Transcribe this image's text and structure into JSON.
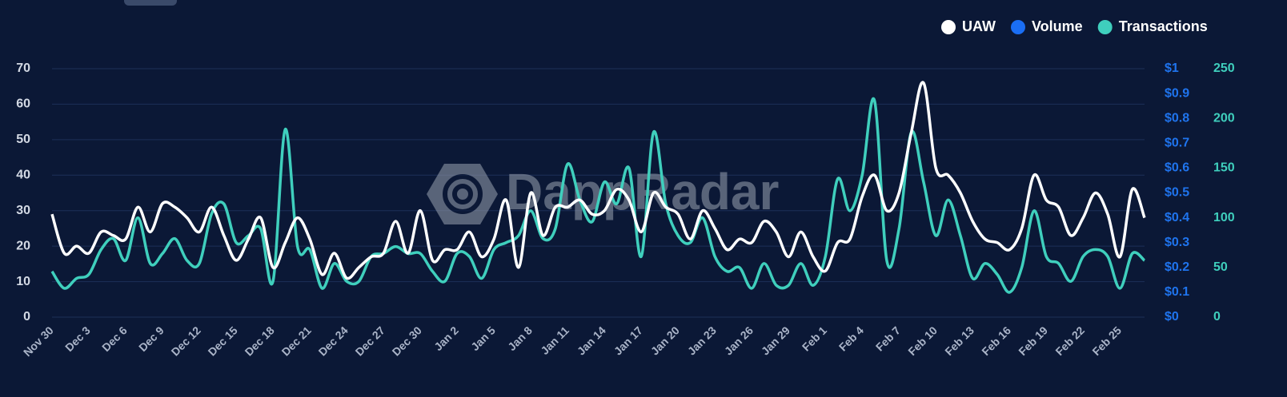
{
  "chart_data": {
    "type": "line",
    "watermark": "DappRadar",
    "categories": [
      "Nov 30",
      null,
      null,
      "Dec 3",
      null,
      null,
      "Dec 6",
      null,
      null,
      "Dec 9",
      null,
      null,
      "Dec 12",
      null,
      null,
      "Dec 15",
      null,
      null,
      "Dec 18",
      null,
      null,
      "Dec 21",
      null,
      null,
      "Dec 24",
      null,
      null,
      "Dec 27",
      null,
      null,
      "Dec 30",
      null,
      null,
      "Jan 2",
      null,
      null,
      "Jan 5",
      null,
      null,
      "Jan 8",
      null,
      null,
      "Jan 11",
      null,
      null,
      "Jan 14",
      null,
      null,
      "Jan 17",
      null,
      null,
      "Jan 20",
      null,
      null,
      "Jan 23",
      null,
      null,
      "Jan 26",
      null,
      null,
      "Jan 29",
      null,
      null,
      "Feb 1",
      null,
      null,
      "Feb 4",
      null,
      null,
      "Feb 7",
      null,
      null,
      "Feb 10",
      null,
      null,
      "Feb 13",
      null,
      null,
      "Feb 16",
      null,
      null,
      "Feb 19",
      null,
      null,
      "Feb 22",
      null,
      null,
      "Feb 25",
      null,
      null
    ],
    "series": [
      {
        "name": "UAW",
        "color": "#ffffff",
        "axis": "y",
        "values": [
          29,
          18,
          20,
          18,
          24,
          23,
          22,
          31,
          24,
          32,
          31,
          28,
          24,
          31,
          23,
          16,
          22,
          28,
          14,
          21,
          28,
          22,
          12,
          18,
          11,
          14,
          17,
          18,
          27,
          18,
          30,
          16,
          19,
          19,
          24,
          17,
          22,
          33,
          14,
          35,
          23,
          31,
          31,
          33,
          29,
          30,
          36,
          33,
          24,
          35,
          31,
          29,
          22,
          30,
          25,
          19,
          22,
          21,
          27,
          24,
          17,
          24,
          17,
          13,
          21,
          22,
          34,
          40,
          30,
          35,
          52,
          66,
          42,
          40,
          35,
          27,
          22,
          21,
          19,
          25,
          40,
          33,
          31,
          23,
          28,
          35,
          29,
          17,
          36,
          28
        ]
      },
      {
        "name": "Volume",
        "color": "#1a6ef5",
        "axis": "y2"
      },
      {
        "name": "Transactions",
        "color": "#3fcfbd",
        "axis": "y3",
        "values": [
          46,
          29,
          39,
          43,
          68,
          79,
          57,
          100,
          54,
          64,
          79,
          57,
          54,
          104,
          114,
          75,
          82,
          89,
          36,
          189,
          71,
          68,
          29,
          54,
          36,
          36,
          61,
          64,
          71,
          64,
          64,
          46,
          36,
          64,
          61,
          39,
          68,
          75,
          82,
          107,
          79,
          89,
          154,
          118,
          96,
          136,
          114,
          150,
          61,
          186,
          114,
          82,
          75,
          100,
          61,
          46,
          50,
          29,
          54,
          32,
          32,
          54,
          32,
          61,
          139,
          107,
          143,
          218,
          57,
          89,
          186,
          136,
          82,
          118,
          82,
          39,
          54,
          43,
          25,
          50,
          107,
          61,
          54,
          36,
          61,
          68,
          61,
          29,
          64,
          57
        ]
      }
    ],
    "ylim": [
      0,
      70
    ],
    "yticks": [
      0,
      10,
      20,
      30,
      40,
      50,
      60,
      70
    ],
    "y2lim": [
      0,
      1
    ],
    "y2ticks": [
      {
        "value": 0,
        "label": "$0"
      },
      {
        "value": 0.1,
        "label": "$0.1"
      },
      {
        "value": 0.2,
        "label": "$0.2"
      },
      {
        "value": 0.3,
        "label": "$0.3"
      },
      {
        "value": 0.4,
        "label": "$0.4"
      },
      {
        "value": 0.5,
        "label": "$0.5"
      },
      {
        "value": 0.6,
        "label": "$0.6"
      },
      {
        "value": 0.7,
        "label": "$0.7"
      },
      {
        "value": 0.8,
        "label": "$0.8"
      },
      {
        "value": 0.9,
        "label": "$0.9"
      },
      {
        "value": 1,
        "label": "$1"
      }
    ],
    "y3lim": [
      0,
      250
    ],
    "y3ticks": [
      0,
      50,
      100,
      150,
      200,
      250
    ],
    "grid": true,
    "legend": "top-right"
  }
}
